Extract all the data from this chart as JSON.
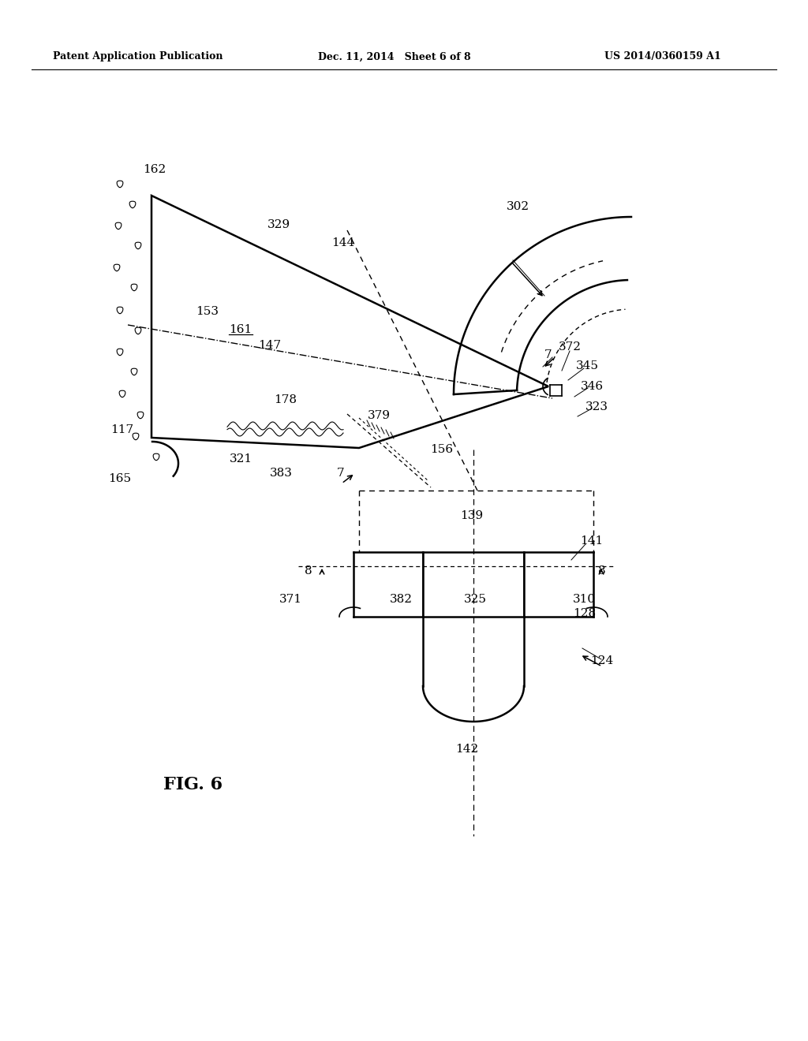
{
  "bg_color": "#ffffff",
  "line_color": "#000000",
  "header_left": "Patent Application Publication",
  "header_center": "Dec. 11, 2014   Sheet 6 of 8",
  "header_right": "US 2014/0360159 A1",
  "fig_label": "FIG. 6"
}
